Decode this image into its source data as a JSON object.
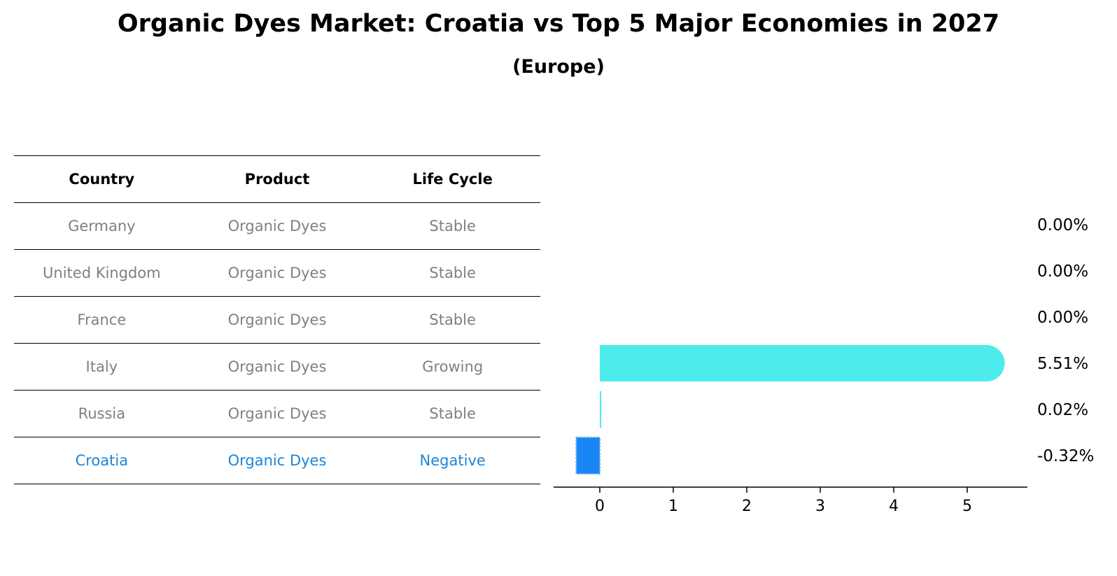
{
  "chart_data": {
    "type": "bar",
    "orientation": "horizontal",
    "title": "Organic Dyes Market: Croatia vs Top 5 Major Economies in 2027",
    "subtitle": "(Europe)",
    "table": {
      "headers": [
        "Country",
        "Product",
        "Life Cycle"
      ],
      "rows": [
        {
          "country": "Germany",
          "product": "Organic Dyes",
          "life_cycle": "Stable"
        },
        {
          "country": "United Kingdom",
          "product": "Organic Dyes",
          "life_cycle": "Stable"
        },
        {
          "country": "France",
          "product": "Organic Dyes",
          "life_cycle": "Stable"
        },
        {
          "country": "Italy",
          "product": "Organic Dyes",
          "life_cycle": "Growing"
        },
        {
          "country": "Russia",
          "product": "Organic Dyes",
          "life_cycle": "Stable"
        },
        {
          "country": "Croatia",
          "product": "Organic Dyes",
          "life_cycle": "Negative"
        }
      ]
    },
    "categories": [
      "Germany",
      "United Kingdom",
      "France",
      "Italy",
      "Russia",
      "Croatia"
    ],
    "values": [
      0.0,
      0.0,
      0.0,
      5.51,
      0.02,
      -0.32
    ],
    "value_labels": [
      "0.00%",
      "0.00%",
      "0.00%",
      "5.51%",
      "0.02%",
      "-0.32%"
    ],
    "xticks": [
      0,
      1,
      2,
      3,
      4,
      5
    ],
    "xlim": [
      -0.62,
      5.8
    ],
    "colors": {
      "positive": "#4deceb",
      "highlight": "#1a86f5",
      "highlight_text": "#1a86d9",
      "muted_text": "#808080"
    },
    "highlight_index": 5
  }
}
